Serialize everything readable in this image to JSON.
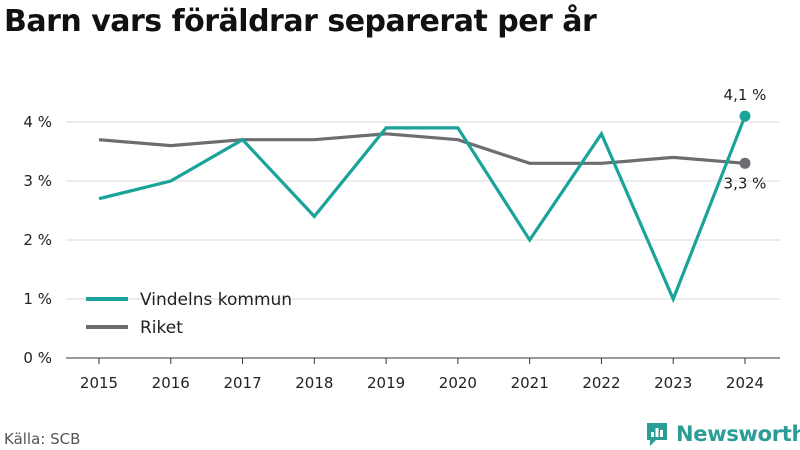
{
  "title": "Barn vars föräldrar separerat per år",
  "source": "Källa: SCB",
  "brand": {
    "name": "Newsworthy",
    "icon": "newsworthy-logo-icon"
  },
  "chart_data": {
    "type": "line",
    "title": "Barn vars föräldrar separerat per år",
    "xlabel": "",
    "ylabel": "",
    "categories": [
      "2015",
      "2016",
      "2017",
      "2018",
      "2019",
      "2020",
      "2021",
      "2022",
      "2023",
      "2024"
    ],
    "ylim": [
      0,
      4
    ],
    "yticks": [
      0,
      1,
      2,
      3,
      4
    ],
    "ytick_labels": [
      "0 %",
      "1 %",
      "2 %",
      "3 %",
      "4 %"
    ],
    "grid": true,
    "legend_position": "lower-left",
    "series": [
      {
        "name": "Vindelns kommun",
        "color": "#1aa398",
        "values": [
          2.7,
          3.0,
          3.7,
          2.4,
          3.9,
          3.9,
          2.0,
          3.8,
          1.0,
          4.1
        ],
        "end_label": "4,1 %"
      },
      {
        "name": "Riket",
        "color": "#6d6c71",
        "values": [
          3.7,
          3.6,
          3.7,
          3.7,
          3.8,
          3.7,
          3.3,
          3.3,
          3.4,
          3.3
        ],
        "end_label": "3,3 %"
      }
    ]
  }
}
